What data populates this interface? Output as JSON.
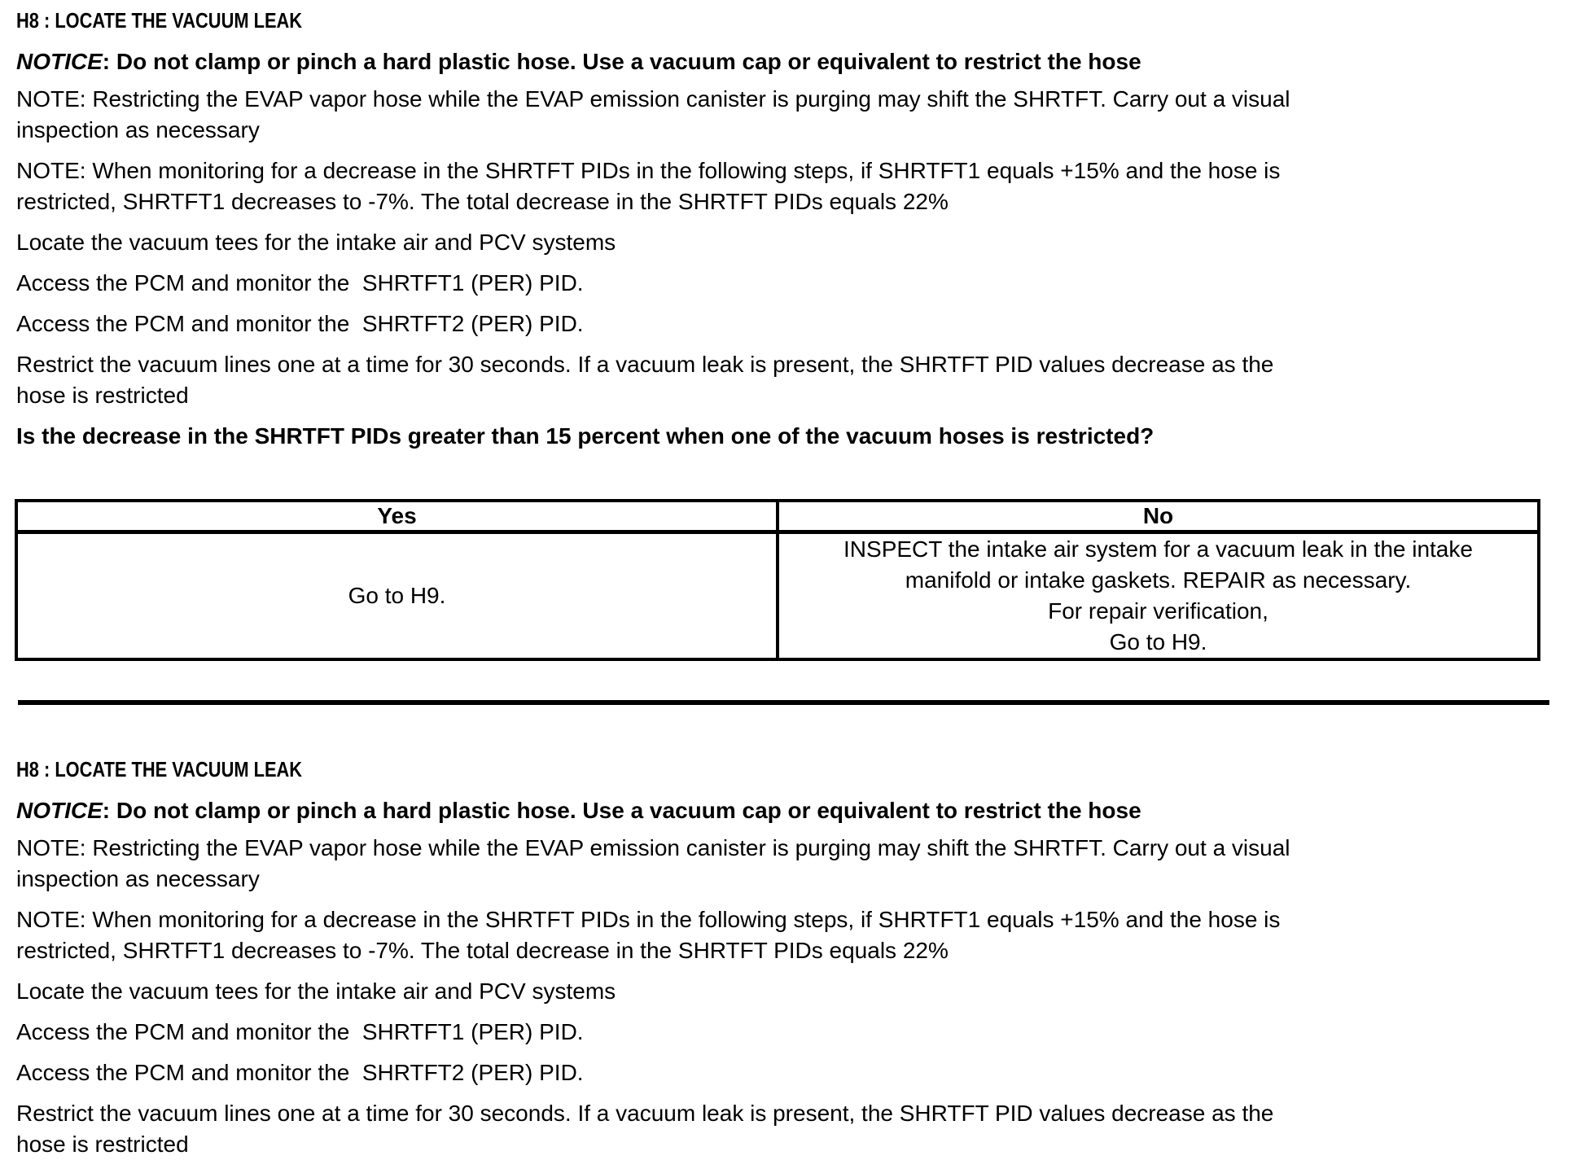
{
  "colors": {
    "text": "#000000",
    "background": "#ffffff",
    "border": "#000000"
  },
  "section1": {
    "heading": "H8 : LOCATE THE VACUUM LEAK",
    "notice_label": "NOTICE",
    "notice_rest": ": Do not clamp or pinch a hard plastic hose. Use a vacuum cap or equivalent to restrict the hose",
    "paragraphs": [
      {
        "lines": [
          "NOTE: Restricting the EVAP vapor hose while the EVAP emission canister is purging may shift the SHRTFT. Carry out a visual",
          "inspection as necessary"
        ]
      },
      {
        "lines": [
          "NOTE: When monitoring for a decrease in the SHRTFT PIDs in the following steps, if SHRTFT1 equals +15% and the hose is",
          "restricted, SHRTFT1 decreases to -7%. The total decrease in the SHRTFT PIDs equals 22%"
        ]
      },
      {
        "lines": [
          "Locate the vacuum tees for the intake air and PCV systems"
        ]
      },
      {
        "lines": [
          "Access the PCM and monitor the  SHRTFT1 (PER) PID."
        ]
      },
      {
        "lines": [
          "Access the PCM and monitor the  SHRTFT2 (PER) PID."
        ]
      },
      {
        "lines": [
          "Restrict the vacuum lines one at a time for 30 seconds. If a vacuum leak is present, the SHRTFT PID values decrease as the",
          "hose is restricted"
        ]
      }
    ],
    "question": "Is the decrease in the SHRTFT PIDs greater than 15 percent when one of the vacuum hoses is restricted?",
    "table": {
      "headers": [
        "Yes",
        "No"
      ],
      "yes_cell": [
        "Go to H9."
      ],
      "no_cell": [
        "INSPECT the intake air system for a vacuum leak in the intake",
        "manifold or intake gaskets. REPAIR as necessary.",
        "For repair verification,",
        "Go to H9."
      ]
    }
  },
  "section2": {
    "heading": "H8 : LOCATE THE VACUUM LEAK",
    "notice_label": "NOTICE",
    "notice_rest": ": Do not clamp or pinch a hard plastic hose. Use a vacuum cap or equivalent to restrict the hose",
    "paragraphs": [
      {
        "lines": [
          "NOTE: Restricting the EVAP vapor hose while the EVAP emission canister is purging may shift the SHRTFT. Carry out a visual",
          "inspection as necessary"
        ]
      },
      {
        "lines": [
          "NOTE: When monitoring for a decrease in the SHRTFT PIDs in the following steps, if SHRTFT1 equals +15% and the hose is",
          "restricted, SHRTFT1 decreases to -7%. The total decrease in the SHRTFT PIDs equals 22%"
        ]
      },
      {
        "lines": [
          "Locate the vacuum tees for the intake air and PCV systems"
        ]
      },
      {
        "lines": [
          "Access the PCM and monitor the  SHRTFT1 (PER) PID."
        ]
      },
      {
        "lines": [
          "Access the PCM and monitor the  SHRTFT2 (PER) PID."
        ]
      },
      {
        "lines": [
          "Restrict the vacuum lines one at a time for 30 seconds. If a vacuum leak is present, the SHRTFT PID values decrease as the",
          "hose is restricted"
        ]
      }
    ]
  }
}
